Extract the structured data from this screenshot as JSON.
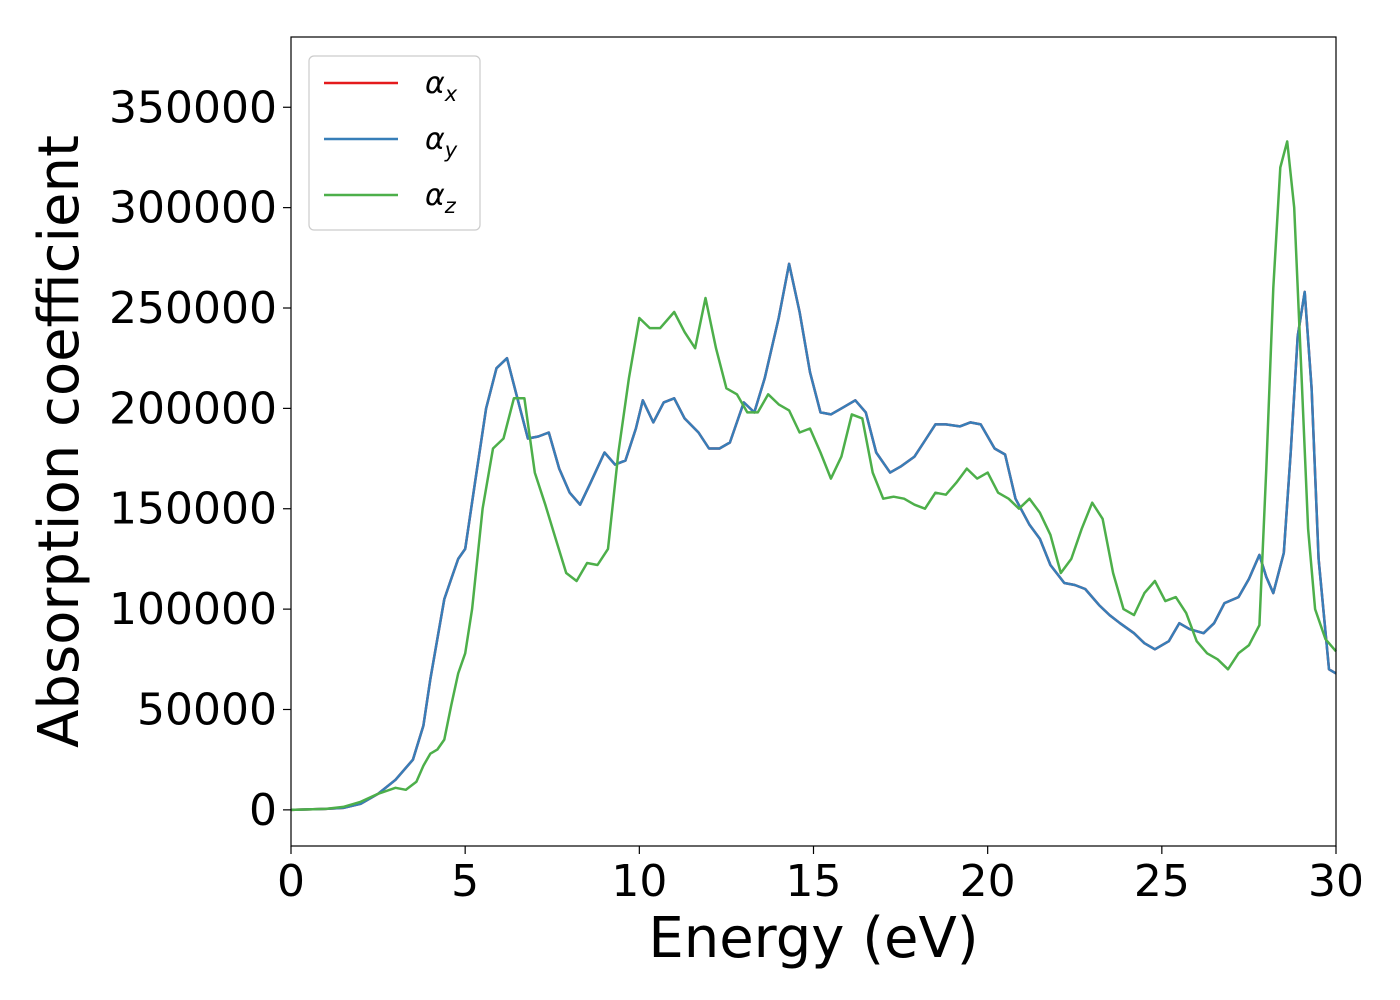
{
  "chart_data": {
    "type": "line",
    "title": "",
    "xlabel": "Energy (eV)",
    "ylabel": "Absorption coefficient",
    "xlim": [
      0,
      30
    ],
    "ylim": [
      -18000,
      385000
    ],
    "xticks": [
      0,
      5,
      10,
      15,
      20,
      25,
      30
    ],
    "yticks": [
      0,
      50000,
      100000,
      150000,
      200000,
      250000,
      300000,
      350000
    ],
    "grid": false,
    "legend_position": "top-left",
    "series": [
      {
        "name": "α",
        "subscript": "x",
        "color": "#e41a1c",
        "x": [
          0,
          1,
          1.5,
          2,
          2.5,
          3,
          3.5,
          3.8,
          4,
          4.2,
          4.4,
          4.6,
          4.8,
          5,
          5.3,
          5.6,
          5.9,
          6.2,
          6.5,
          6.8,
          7.1,
          7.4,
          7.7,
          8.0,
          8.3,
          8.6,
          9.0,
          9.3,
          9.6,
          9.9,
          10.1,
          10.4,
          10.7,
          11.0,
          11.3,
          11.7,
          12.0,
          12.3,
          12.6,
          13.0,
          13.3,
          13.6,
          14.0,
          14.3,
          14.6,
          14.9,
          15.2,
          15.5,
          15.8,
          16.2,
          16.5,
          16.8,
          17.2,
          17.5,
          17.9,
          18.2,
          18.5,
          18.8,
          19.2,
          19.5,
          19.8,
          20.2,
          20.5,
          20.8,
          21.2,
          21.5,
          21.8,
          22.2,
          22.5,
          22.8,
          23.2,
          23.5,
          23.8,
          24.2,
          24.5,
          24.8,
          25.2,
          25.5,
          25.8,
          26.2,
          26.5,
          26.8,
          27.2,
          27.5,
          27.8,
          28.0,
          28.2,
          28.5,
          28.7,
          28.9,
          29.1,
          29.3,
          29.5,
          29.8,
          30.0
        ],
        "values": [
          0,
          500,
          1000,
          3000,
          8000,
          15000,
          25000,
          42000,
          65000,
          85000,
          105000,
          115000,
          125000,
          130000,
          165000,
          200000,
          220000,
          225000,
          205000,
          185000,
          186000,
          188000,
          170000,
          158000,
          152000,
          163000,
          178000,
          172000,
          174000,
          190000,
          204000,
          193000,
          203000,
          205000,
          195000,
          188000,
          180000,
          180000,
          183000,
          203000,
          198000,
          215000,
          245000,
          272000,
          248000,
          218000,
          198000,
          197000,
          200000,
          204000,
          198000,
          178000,
          168000,
          171000,
          176000,
          184000,
          192000,
          192000,
          191000,
          193000,
          192000,
          180000,
          177000,
          155000,
          142000,
          135000,
          122000,
          113000,
          112000,
          110000,
          102000,
          97000,
          93000,
          88000,
          83000,
          80000,
          84000,
          93000,
          90000,
          88000,
          93000,
          103000,
          106000,
          115000,
          127000,
          116000,
          108000,
          128000,
          178000,
          236000,
          258000,
          210000,
          125000,
          70000,
          68000
        ]
      },
      {
        "name": "α",
        "subscript": "y",
        "color": "#377eb8",
        "x": [
          0,
          1,
          1.5,
          2,
          2.5,
          3,
          3.5,
          3.8,
          4,
          4.2,
          4.4,
          4.6,
          4.8,
          5,
          5.3,
          5.6,
          5.9,
          6.2,
          6.5,
          6.8,
          7.1,
          7.4,
          7.7,
          8.0,
          8.3,
          8.6,
          9.0,
          9.3,
          9.6,
          9.9,
          10.1,
          10.4,
          10.7,
          11.0,
          11.3,
          11.7,
          12.0,
          12.3,
          12.6,
          13.0,
          13.3,
          13.6,
          14.0,
          14.3,
          14.6,
          14.9,
          15.2,
          15.5,
          15.8,
          16.2,
          16.5,
          16.8,
          17.2,
          17.5,
          17.9,
          18.2,
          18.5,
          18.8,
          19.2,
          19.5,
          19.8,
          20.2,
          20.5,
          20.8,
          21.2,
          21.5,
          21.8,
          22.2,
          22.5,
          22.8,
          23.2,
          23.5,
          23.8,
          24.2,
          24.5,
          24.8,
          25.2,
          25.5,
          25.8,
          26.2,
          26.5,
          26.8,
          27.2,
          27.5,
          27.8,
          28.0,
          28.2,
          28.5,
          28.7,
          28.9,
          29.1,
          29.3,
          29.5,
          29.8,
          30.0
        ],
        "values": [
          0,
          500,
          1000,
          3000,
          8000,
          15000,
          25000,
          42000,
          65000,
          85000,
          105000,
          115000,
          125000,
          130000,
          165000,
          200000,
          220000,
          225000,
          205000,
          185000,
          186000,
          188000,
          170000,
          158000,
          152000,
          163000,
          178000,
          172000,
          174000,
          190000,
          204000,
          193000,
          203000,
          205000,
          195000,
          188000,
          180000,
          180000,
          183000,
          203000,
          198000,
          215000,
          245000,
          272000,
          248000,
          218000,
          198000,
          197000,
          200000,
          204000,
          198000,
          178000,
          168000,
          171000,
          176000,
          184000,
          192000,
          192000,
          191000,
          193000,
          192000,
          180000,
          177000,
          155000,
          142000,
          135000,
          122000,
          113000,
          112000,
          110000,
          102000,
          97000,
          93000,
          88000,
          83000,
          80000,
          84000,
          93000,
          90000,
          88000,
          93000,
          103000,
          106000,
          115000,
          127000,
          116000,
          108000,
          128000,
          178000,
          236000,
          258000,
          210000,
          125000,
          70000,
          68000
        ]
      },
      {
        "name": "α",
        "subscript": "z",
        "color": "#4daf4a",
        "x": [
          0,
          1,
          1.5,
          2,
          2.5,
          3,
          3.3,
          3.6,
          3.8,
          4.0,
          4.2,
          4.4,
          4.6,
          4.8,
          5.0,
          5.2,
          5.5,
          5.8,
          6.1,
          6.4,
          6.7,
          7.0,
          7.3,
          7.6,
          7.9,
          8.2,
          8.5,
          8.8,
          9.1,
          9.4,
          9.7,
          10.0,
          10.3,
          10.6,
          11.0,
          11.3,
          11.6,
          11.9,
          12.2,
          12.5,
          12.8,
          13.1,
          13.4,
          13.7,
          14.0,
          14.3,
          14.6,
          14.9,
          15.2,
          15.5,
          15.8,
          16.1,
          16.4,
          16.7,
          17.0,
          17.3,
          17.6,
          17.9,
          18.2,
          18.5,
          18.8,
          19.1,
          19.4,
          19.7,
          20.0,
          20.3,
          20.6,
          20.9,
          21.2,
          21.5,
          21.8,
          22.1,
          22.4,
          22.7,
          23.0,
          23.3,
          23.6,
          23.9,
          24.2,
          24.5,
          24.8,
          25.1,
          25.4,
          25.7,
          26.0,
          26.3,
          26.6,
          26.9,
          27.2,
          27.5,
          27.8,
          28.0,
          28.2,
          28.4,
          28.6,
          28.8,
          29.0,
          29.2,
          29.4,
          29.7,
          30.0
        ],
        "values": [
          0,
          500,
          1500,
          4000,
          8000,
          11000,
          10000,
          14000,
          22000,
          28000,
          30000,
          35000,
          52000,
          68000,
          78000,
          100000,
          150000,
          180000,
          185000,
          205000,
          205000,
          168000,
          152000,
          135000,
          118000,
          114000,
          123000,
          122000,
          130000,
          178000,
          215000,
          245000,
          240000,
          240000,
          248000,
          238000,
          230000,
          255000,
          230000,
          210000,
          207000,
          198000,
          198000,
          207000,
          202000,
          199000,
          188000,
          190000,
          178000,
          165000,
          176000,
          197000,
          195000,
          168000,
          155000,
          156000,
          155000,
          152000,
          150000,
          158000,
          157000,
          163000,
          170000,
          165000,
          168000,
          158000,
          155000,
          150000,
          155000,
          148000,
          137000,
          118000,
          125000,
          140000,
          153000,
          145000,
          118000,
          100000,
          97000,
          108000,
          114000,
          104000,
          106000,
          98000,
          84000,
          78000,
          75000,
          70000,
          78000,
          82000,
          92000,
          170000,
          260000,
          320000,
          333000,
          300000,
          220000,
          140000,
          100000,
          85000,
          79000
        ]
      }
    ]
  }
}
